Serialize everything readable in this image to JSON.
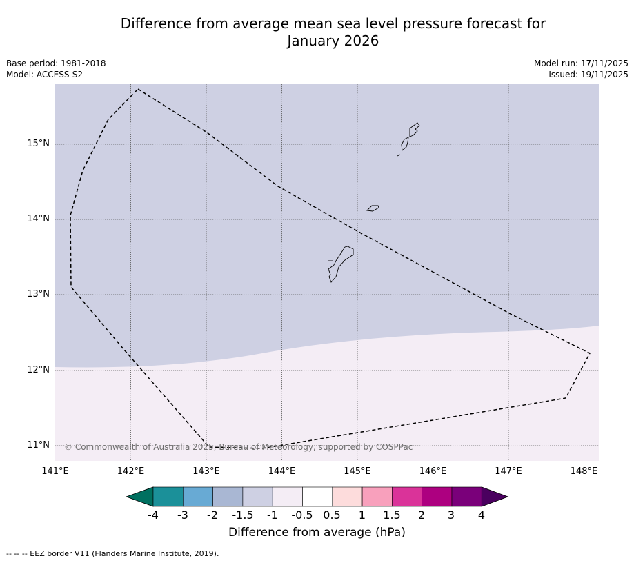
{
  "title_line1": "Difference from average mean sea level pressure forecast for",
  "title_line2": "January 2026",
  "meta": {
    "base_period": "Base period: 1981-2018",
    "model": "Model: ACCESS-S2",
    "model_run": "Model run: 17/11/2025",
    "issued": "Issued: 19/11/2025"
  },
  "map": {
    "lat_labels": [
      "15°N",
      "14°N",
      "13°N",
      "12°N",
      "11°N"
    ],
    "lon_labels": [
      "141°E",
      "142°E",
      "143°E",
      "144°E",
      "145°E",
      "146°E",
      "147°E",
      "148°E"
    ],
    "copyright": "© Commonwealth of Australia 2025, Bureau of Meteorology, supported by COSPPac",
    "colors": {
      "region_minus1_5": "#ced0e3",
      "region_minus0_5": "#f4edf5"
    }
  },
  "colorbar": {
    "labels": [
      "-4",
      "-3",
      "-2",
      "-1.5",
      "-1",
      "-0.5",
      "0.5",
      "1",
      "1.5",
      "2",
      "3",
      "4"
    ],
    "colors": [
      "#007060",
      "#1b9099",
      "#68aad4",
      "#a9b7d3",
      "#ced0e3",
      "#f4edf5",
      "#ffffff",
      "#fddcdc",
      "#f8a0bc",
      "#da3399",
      "#ad0080",
      "#7a007a",
      "#4a005f"
    ],
    "title": "Difference from average (hPa)"
  },
  "footnote": "--  --  -- EEZ border V11 (Flanders Marine Institute, 2019)."
}
